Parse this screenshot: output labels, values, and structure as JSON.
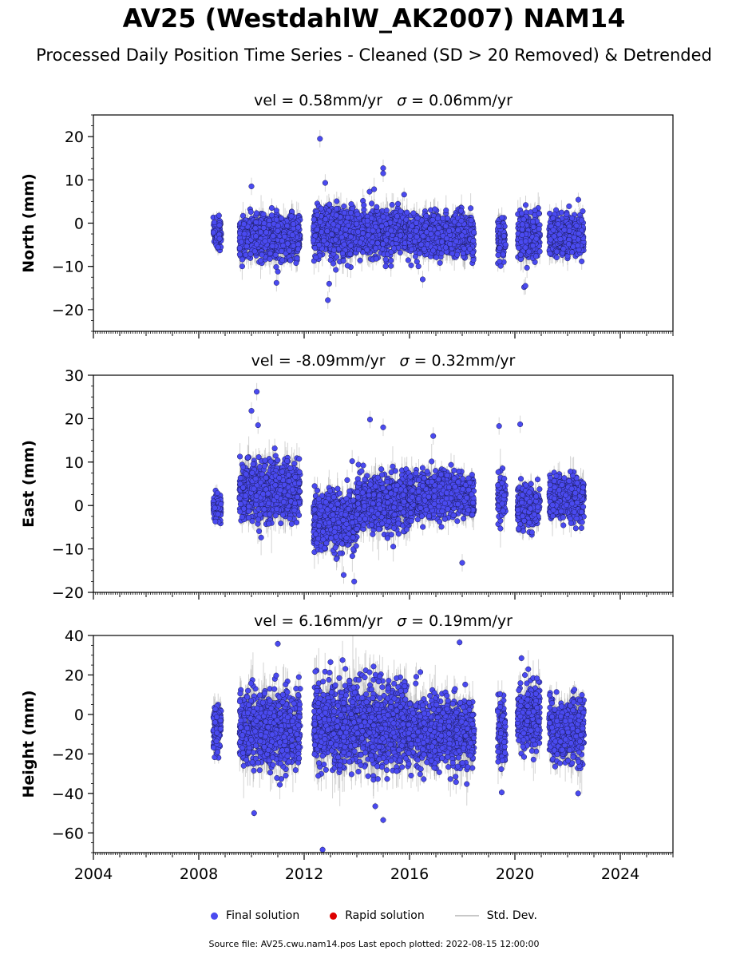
{
  "title": "AV25 (WestdahlW_AK2007) NAM14",
  "subtitle": "Processed Daily Position Time Series - Cleaned (SD > 20 Removed) & Detrended",
  "footer": "Source file: AV25.cwu.nam14.pos  Last epoch plotted: 2022-08-15 12:00:00",
  "legend": {
    "final": "Final solution",
    "rapid": "Rapid solution",
    "stddev": "Std. Dev."
  },
  "colors": {
    "final": "#4a4af0",
    "rapid": "#dd0000",
    "stddev": "#c8c8c8"
  },
  "chart_data": [
    {
      "type": "scatter",
      "ylabel": "North (mm)",
      "vel_label": "vel = 0.58mm/yr",
      "sigma_label": "= 0.06mm/yr",
      "xlim": [
        2004,
        2026
      ],
      "ylim": [
        -25,
        25
      ],
      "yticks": [
        -20,
        -10,
        0,
        10,
        20
      ],
      "xticks": [
        2004,
        2008,
        2012,
        2016,
        2020,
        2024
      ],
      "segments": [
        {
          "start": 2008.55,
          "end": 2008.85,
          "mean": -2.5,
          "sd": 1.8
        },
        {
          "start": 2009.55,
          "end": 2011.85,
          "mean": -3.2,
          "sd": 2.4
        },
        {
          "start": 2012.35,
          "end": 2015.95,
          "mean": -2.0,
          "sd": 2.6
        },
        {
          "start": 2015.95,
          "end": 2018.45,
          "mean": -2.8,
          "sd": 2.3
        },
        {
          "start": 2019.35,
          "end": 2019.65,
          "mean": -3.5,
          "sd": 2.5
        },
        {
          "start": 2020.1,
          "end": 2020.95,
          "mean": -2.8,
          "sd": 2.5
        },
        {
          "start": 2021.3,
          "end": 2022.62,
          "mean": -3.0,
          "sd": 2.2
        }
      ],
      "outliers": [
        [
          2012.6,
          19.5
        ],
        [
          2012.9,
          -17.8
        ],
        [
          2015.0,
          12.7
        ],
        [
          2015.0,
          11.5
        ],
        [
          2020.4,
          -14.5
        ],
        [
          2012.95,
          -14.0
        ],
        [
          2010.95,
          -13.8
        ],
        [
          2010.0,
          8.5
        ],
        [
          2016.5,
          -13.0
        ],
        [
          2012.8,
          9.3
        ]
      ]
    },
    {
      "type": "scatter",
      "ylabel": "East (mm)",
      "vel_label": "vel = -8.09mm/yr",
      "sigma_label": "= 0.32mm/yr",
      "xlim": [
        2004,
        2026
      ],
      "ylim": [
        -20,
        30
      ],
      "yticks": [
        -20,
        -10,
        0,
        10,
        20,
        30
      ],
      "xticks": [
        2004,
        2008,
        2012,
        2016,
        2020,
        2024
      ],
      "segments": [
        {
          "start": 2008.55,
          "end": 2008.85,
          "mean": -0.3,
          "sd": 1.5
        },
        {
          "start": 2009.55,
          "end": 2011.85,
          "mean": 3.5,
          "sd": 3.2
        },
        {
          "start": 2012.35,
          "end": 2014.0,
          "mean": -3.5,
          "sd": 3.2
        },
        {
          "start": 2014.0,
          "end": 2016.0,
          "mean": 0.5,
          "sd": 3.0
        },
        {
          "start": 2016.0,
          "end": 2018.45,
          "mean": 2.2,
          "sd": 2.5
        },
        {
          "start": 2019.35,
          "end": 2019.65,
          "mean": 1.5,
          "sd": 2.5
        },
        {
          "start": 2020.1,
          "end": 2020.95,
          "mean": -0.3,
          "sd": 2.3
        },
        {
          "start": 2021.3,
          "end": 2022.62,
          "mean": 1.8,
          "sd": 2.4
        }
      ],
      "outliers": [
        [
          2010.2,
          26.2
        ],
        [
          2010.0,
          21.8
        ],
        [
          2014.5,
          19.8
        ],
        [
          2020.2,
          18.7
        ],
        [
          2019.4,
          18.3
        ],
        [
          2010.25,
          18.5
        ],
        [
          2015.0,
          18.0
        ],
        [
          2016.9,
          16.0
        ],
        [
          2013.9,
          -17.5
        ],
        [
          2013.5,
          -16.0
        ],
        [
          2018.0,
          -13.2
        ]
      ]
    },
    {
      "type": "scatter",
      "ylabel": "Height (mm)",
      "vel_label": "vel = 6.16mm/yr",
      "sigma_label": "= 0.19mm/yr",
      "xlim": [
        2004,
        2026
      ],
      "ylim": [
        -70,
        40
      ],
      "yticks": [
        -60,
        -40,
        -20,
        0,
        20,
        40
      ],
      "xticks": [
        2004,
        2008,
        2012,
        2016,
        2020,
        2024
      ],
      "xticklabels": [
        "2004",
        "2008",
        "2012",
        "2016",
        "2020",
        "2024"
      ],
      "segments": [
        {
          "start": 2008.55,
          "end": 2008.85,
          "mean": -6.0,
          "sd": 6.0
        },
        {
          "start": 2009.55,
          "end": 2011.85,
          "mean": -7.0,
          "sd": 9.5
        },
        {
          "start": 2012.35,
          "end": 2015.95,
          "mean": -5.5,
          "sd": 10.0
        },
        {
          "start": 2015.95,
          "end": 2018.45,
          "mean": -9.0,
          "sd": 8.5
        },
        {
          "start": 2019.35,
          "end": 2019.65,
          "mean": -10.0,
          "sd": 7.5
        },
        {
          "start": 2020.1,
          "end": 2020.95,
          "mean": -1.0,
          "sd": 7.5
        },
        {
          "start": 2021.3,
          "end": 2022.62,
          "mean": -8.0,
          "sd": 8.0
        }
      ],
      "outliers": [
        [
          2012.7,
          -68.5
        ],
        [
          2015.0,
          -53.5
        ],
        [
          2010.1,
          -50.0
        ],
        [
          2017.9,
          36.5
        ],
        [
          2011.0,
          35.8
        ],
        [
          2020.25,
          28.5
        ],
        [
          2022.4,
          -40.0
        ],
        [
          2019.5,
          -39.5
        ],
        [
          2014.7,
          -46.5
        ],
        [
          2013.0,
          26.5
        ]
      ]
    }
  ]
}
